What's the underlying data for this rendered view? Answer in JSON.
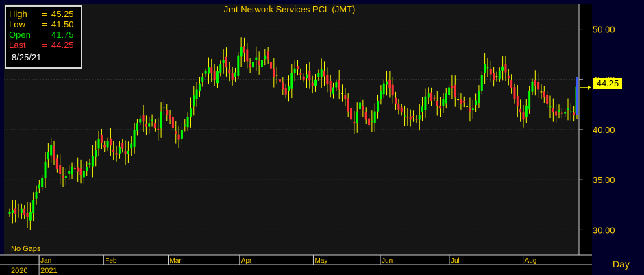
{
  "header": {
    "title": "Jmt Network Services PCL (JMT)"
  },
  "ohlc_box": {
    "high_label": "High",
    "high_value": "45.25",
    "low_label": "Low",
    "low_value": "41.50",
    "open_label": "Open",
    "open_value": "41.75",
    "last_label": "Last",
    "last_value": "44.25",
    "equals": "=",
    "date": "8/25/21"
  },
  "footer": {
    "no_gaps": "No Gaps",
    "interval": "Day"
  },
  "colors": {
    "background": "#000010",
    "plot_bg": "#151515",
    "up_bar": "#00ff00",
    "down_bar": "#ff3333",
    "neutral_bar": "#ffff00",
    "axis_text": "#ffd200",
    "grid": "#3a3a3a"
  },
  "chart_data": {
    "type": "ohlc",
    "title": "Jmt Network Services PCL (JMT)",
    "x_type": "date",
    "x_range": [
      "2020-12-21",
      "2021-08-25"
    ],
    "y_range": [
      27.5,
      52.5
    ],
    "y_ticks": [
      "30.00",
      "35.00",
      "40.00",
      "45.00",
      "50.00"
    ],
    "y_tick_values": [
      30,
      35,
      40,
      45,
      50
    ],
    "month_labels": [
      "Jan",
      "Feb",
      "Mar",
      "Apr",
      "May",
      "Jun",
      "Jul",
      "Aug"
    ],
    "month_starts": [
      "2021-01-04",
      "2021-02-01",
      "2021-03-01",
      "2021-04-01",
      "2021-05-03",
      "2021-06-01",
      "2021-07-01",
      "2021-08-02"
    ],
    "year_labels": [
      "2020",
      "2021"
    ],
    "last_price_label": "44.25",
    "grid": true,
    "legend": "none",
    "close_series": [
      31.8,
      32.0,
      31.6,
      31.9,
      32.1,
      31.5,
      31.3,
      31.8,
      33.0,
      33.8,
      34.5,
      35.2,
      36.8,
      37.8,
      38.5,
      37.0,
      36.1,
      35.6,
      35.2,
      35.4,
      35.9,
      36.3,
      36.1,
      35.8,
      35.5,
      35.9,
      36.3,
      36.7,
      37.4,
      38.0,
      39.1,
      38.7,
      38.2,
      38.9,
      38.4,
      37.8,
      37.5,
      38.3,
      38.1,
      37.6,
      37.9,
      38.6,
      40.0,
      40.6,
      41.1,
      40.8,
      40.3,
      40.6,
      41.0,
      40.2,
      40.0,
      41.8,
      42.2,
      41.5,
      41.0,
      40.2,
      39.6,
      39.0,
      40.0,
      40.5,
      41.3,
      42.1,
      43.4,
      44.0,
      44.6,
      45.2,
      45.8,
      46.2,
      45.6,
      45.0,
      45.8,
      46.5,
      46.9,
      46.2,
      45.6,
      45.0,
      45.7,
      47.4,
      48.2,
      47.6,
      46.8,
      46.2,
      46.7,
      47.2,
      46.4,
      46.9,
      47.4,
      47.0,
      46.1,
      45.2,
      45.4,
      44.8,
      44.0,
      43.5,
      44.3,
      45.6,
      46.1,
      46.0,
      45.4,
      45.0,
      45.5,
      44.9,
      44.3,
      45.0,
      45.6,
      46.0,
      45.3,
      44.5,
      43.8,
      44.2,
      44.7,
      44.0,
      43.6,
      43.0,
      41.8,
      41.0,
      40.6,
      41.8,
      42.7,
      41.9,
      41.0,
      40.4,
      40.9,
      41.8,
      42.8,
      43.9,
      44.6,
      44.8,
      44.1,
      43.4,
      42.6,
      42.0,
      41.7,
      41.4,
      41.2,
      41.0,
      41.3,
      41.0,
      41.5,
      42.3,
      43.3,
      43.6,
      42.8,
      43.1,
      42.4,
      42.1,
      43.0,
      43.6,
      44.2,
      44.1,
      43.2,
      43.0,
      42.6,
      42.7,
      42.3,
      41.8,
      42.1,
      42.9,
      43.9,
      45.4,
      46.5,
      46.2,
      45.5,
      44.9,
      45.3,
      45.9,
      46.3,
      45.7,
      45.1,
      44.1,
      43.0,
      42.3,
      41.7,
      41.0,
      42.4,
      43.9,
      44.8,
      44.4,
      44.0,
      43.8,
      43.2,
      42.6,
      42.3,
      41.7,
      41.4,
      41.9,
      41.6,
      41.7,
      42.1,
      41.8,
      41.5,
      44.25
    ]
  }
}
